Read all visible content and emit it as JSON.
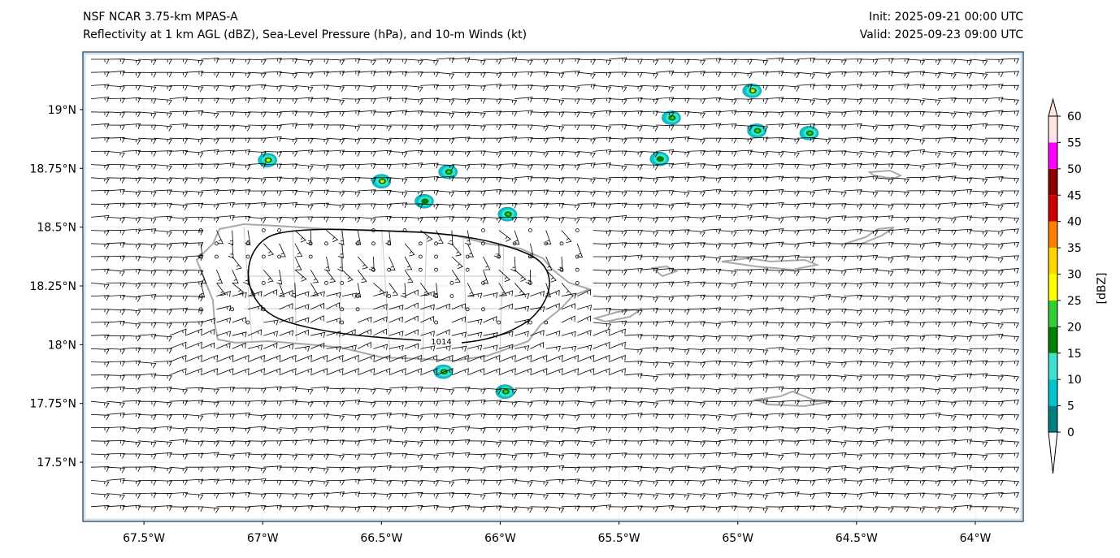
{
  "header": {
    "model": "NSF NCAR 3.75-km MPAS-A",
    "fields": "Reflectivity at 1 km AGL (dBZ), Sea-Level Pressure (hPa), and 10-m Winds (kt)",
    "init": "Init: 2025-09-21 00:00 UTC",
    "valid": "Valid: 2025-09-23 09:00 UTC"
  },
  "map": {
    "lon_range": [
      -67.757,
      -63.798
    ],
    "lat_range": [
      17.248,
      19.245
    ],
    "lon_ticks": [
      {
        "v": -67.5,
        "label": "67.5°W"
      },
      {
        "v": -67,
        "label": "67°W"
      },
      {
        "v": -66.5,
        "label": "66.5°W"
      },
      {
        "v": -66,
        "label": "66°W"
      },
      {
        "v": -65.5,
        "label": "65.5°W"
      },
      {
        "v": -65,
        "label": "65°W"
      },
      {
        "v": -64.5,
        "label": "64.5°W"
      },
      {
        "v": -64,
        "label": "64°W"
      }
    ],
    "lat_ticks": [
      {
        "v": 19,
        "label": "19°N"
      },
      {
        "v": 18.75,
        "label": "18.75°N"
      },
      {
        "v": 18.5,
        "label": "18.5°N"
      },
      {
        "v": 18.25,
        "label": "18.25°N"
      },
      {
        "v": 18,
        "label": "18°N"
      },
      {
        "v": 17.75,
        "label": "17.75°N"
      },
      {
        "v": 17.5,
        "label": "17.5°N"
      }
    ],
    "isobar_label": "1014",
    "reflectivity_cells": [
      {
        "lon": -66.98,
        "lat": 18.785,
        "max_dbz": 25
      },
      {
        "lon": -66.5,
        "lat": 18.695,
        "max_dbz": 30
      },
      {
        "lon": -66.22,
        "lat": 18.735,
        "max_dbz": 20
      },
      {
        "lon": -66.32,
        "lat": 18.61,
        "max_dbz": 15
      },
      {
        "lon": -65.97,
        "lat": 18.555,
        "max_dbz": 20
      },
      {
        "lon": -65.28,
        "lat": 18.965,
        "max_dbz": 20
      },
      {
        "lon": -64.94,
        "lat": 19.08,
        "max_dbz": 30
      },
      {
        "lon": -64.92,
        "lat": 18.91,
        "max_dbz": 20
      },
      {
        "lon": -64.7,
        "lat": 18.9,
        "max_dbz": 20
      },
      {
        "lon": -65.33,
        "lat": 18.79,
        "max_dbz": 15
      },
      {
        "lon": -66.24,
        "lat": 17.885,
        "max_dbz": 20
      },
      {
        "lon": -65.98,
        "lat": 17.8,
        "max_dbz": 20
      }
    ]
  },
  "colorbar": {
    "label": "[dBZ]",
    "ticks": [
      "0",
      "5",
      "10",
      "15",
      "20",
      "25",
      "30",
      "35",
      "40",
      "45",
      "50",
      "55",
      "60"
    ],
    "colors": [
      "#008080",
      "#00c5cd",
      "#40e0d0",
      "#008000",
      "#32cd32",
      "#ffff00",
      "#ffd700",
      "#ff8000",
      "#cc0000",
      "#8b0000",
      "#ff00ff",
      "#ffe4e1"
    ],
    "over_color": "#ffe4e1",
    "under_color": "#ffffff"
  }
}
